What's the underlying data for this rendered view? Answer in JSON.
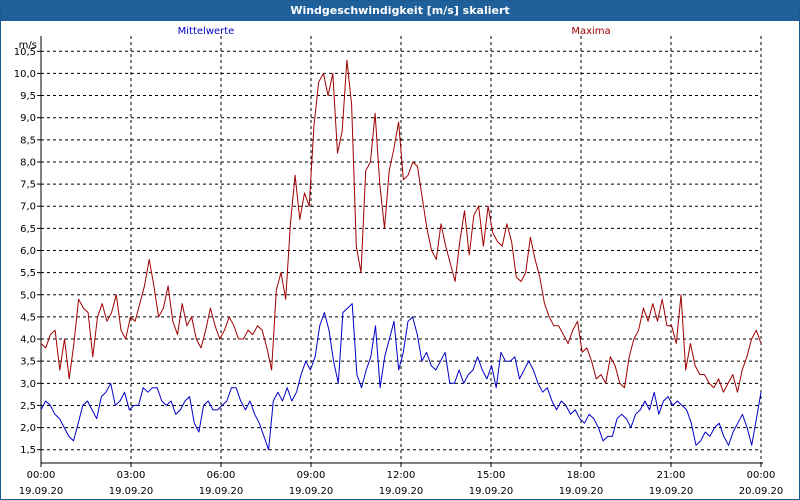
{
  "window": {
    "title": "Windgeschwindigkeit [m/s] skaliert"
  },
  "chart_data": {
    "type": "line",
    "y_unit": "m/s",
    "ylim": [
      1.2,
      10.8
    ],
    "y_ticks": [
      "1,5",
      "2,0",
      "2,5",
      "3,0",
      "3,5",
      "4,0",
      "4,5",
      "5,0",
      "5,5",
      "6,0",
      "6,5",
      "7,0",
      "7,5",
      "8,0",
      "8,5",
      "9,0",
      "9,5",
      "10,0",
      "10,5"
    ],
    "xlim_hours": [
      0,
      24
    ],
    "x_ticks": [
      {
        "time": "00:00",
        "date": "19.09.20"
      },
      {
        "time": "03:00",
        "date": "19.09.20"
      },
      {
        "time": "06:00",
        "date": "19.09.20"
      },
      {
        "time": "09:00",
        "date": "19.09.20"
      },
      {
        "time": "12:00",
        "date": "19.09.20"
      },
      {
        "time": "15:00",
        "date": "19.09.20"
      },
      {
        "time": "18:00",
        "date": "19.09.20"
      },
      {
        "time": "21:00",
        "date": "19.09.20"
      },
      {
        "time": "00:00",
        "date": "20.09.20"
      }
    ],
    "grid": true,
    "series": [
      {
        "name": "Mittelwerte",
        "color": "#0000c8",
        "values": [
          2.4,
          2.6,
          2.5,
          2.3,
          2.2,
          2.0,
          1.8,
          1.7,
          2.1,
          2.5,
          2.6,
          2.4,
          2.2,
          2.7,
          2.8,
          3.0,
          2.5,
          2.6,
          2.8,
          2.4,
          2.5,
          2.5,
          2.9,
          2.8,
          2.9,
          2.9,
          2.6,
          2.5,
          2.6,
          2.3,
          2.4,
          2.6,
          2.7,
          2.1,
          1.9,
          2.5,
          2.6,
          2.4,
          2.4,
          2.5,
          2.6,
          2.9,
          2.9,
          2.6,
          2.4,
          2.6,
          2.3,
          2.1,
          1.8,
          1.5,
          2.6,
          2.8,
          2.6,
          2.9,
          2.6,
          2.8,
          3.2,
          3.5,
          3.3,
          3.6,
          4.3,
          4.6,
          4.2,
          3.5,
          3.0,
          4.6,
          4.7,
          4.8,
          3.2,
          2.9,
          3.3,
          3.6,
          4.3,
          2.9,
          3.6,
          4.0,
          4.4,
          3.3,
          3.7,
          4.4,
          4.5,
          4.1,
          3.5,
          3.7,
          3.4,
          3.3,
          3.5,
          3.7,
          3.0,
          3.0,
          3.3,
          3.0,
          3.2,
          3.3,
          3.6,
          3.3,
          3.1,
          3.4,
          2.9,
          3.7,
          3.5,
          3.5,
          3.6,
          3.1,
          3.3,
          3.5,
          3.3,
          3.0,
          2.8,
          2.9,
          2.6,
          2.4,
          2.6,
          2.5,
          2.3,
          2.4,
          2.2,
          2.1,
          2.3,
          2.2,
          2.0,
          1.7,
          1.8,
          1.8,
          2.2,
          2.3,
          2.2,
          2.0,
          2.3,
          2.4,
          2.6,
          2.4,
          2.8,
          2.3,
          2.6,
          2.7,
          2.5,
          2.6,
          2.5,
          2.4,
          2.1,
          1.6,
          1.7,
          1.9,
          1.8,
          2.0,
          2.1,
          1.8,
          1.6,
          1.9,
          2.1,
          2.3,
          2.0,
          1.6,
          2.2,
          2.8
        ]
      },
      {
        "name": "Maxima",
        "color": "#a00000",
        "values": [
          3.9,
          3.8,
          4.1,
          4.2,
          3.3,
          4.0,
          3.1,
          3.9,
          4.9,
          4.7,
          4.6,
          3.6,
          4.5,
          4.8,
          4.4,
          4.6,
          5.0,
          4.2,
          4.0,
          4.5,
          4.4,
          4.8,
          5.2,
          5.8,
          5.2,
          4.5,
          4.7,
          5.2,
          4.4,
          4.1,
          4.8,
          4.3,
          4.5,
          4.0,
          3.8,
          4.2,
          4.7,
          4.3,
          4.0,
          4.2,
          4.5,
          4.3,
          4.0,
          4.0,
          4.2,
          4.1,
          4.3,
          4.2,
          3.8,
          3.3,
          5.1,
          5.5,
          4.9,
          6.6,
          7.7,
          6.7,
          7.3,
          7.0,
          8.8,
          9.8,
          10.0,
          9.5,
          10.0,
          8.2,
          8.7,
          10.3,
          9.3,
          6.1,
          5.5,
          7.8,
          8.0,
          9.1,
          7.5,
          6.5,
          7.8,
          8.3,
          8.9,
          7.6,
          7.7,
          8.0,
          7.9,
          7.2,
          6.5,
          6.0,
          5.8,
          6.6,
          6.1,
          5.7,
          5.3,
          6.2,
          6.9,
          5.9,
          6.8,
          7.0,
          6.1,
          7.0,
          6.4,
          6.2,
          6.1,
          6.6,
          6.2,
          5.4,
          5.3,
          5.5,
          6.3,
          5.8,
          5.4,
          4.8,
          4.5,
          4.3,
          4.3,
          4.1,
          3.9,
          4.2,
          4.4,
          3.7,
          3.8,
          3.5,
          3.1,
          3.2,
          3.0,
          3.6,
          3.4,
          3.0,
          2.9,
          3.6,
          4.0,
          4.2,
          4.7,
          4.4,
          4.8,
          4.4,
          4.9,
          4.3,
          4.3,
          3.9,
          5.0,
          3.3,
          3.9,
          3.4,
          3.2,
          3.2,
          3.0,
          2.9,
          3.1,
          2.8,
          3.0,
          3.2,
          2.8,
          3.3,
          3.6,
          4.0,
          4.2,
          3.9
        ]
      }
    ]
  }
}
